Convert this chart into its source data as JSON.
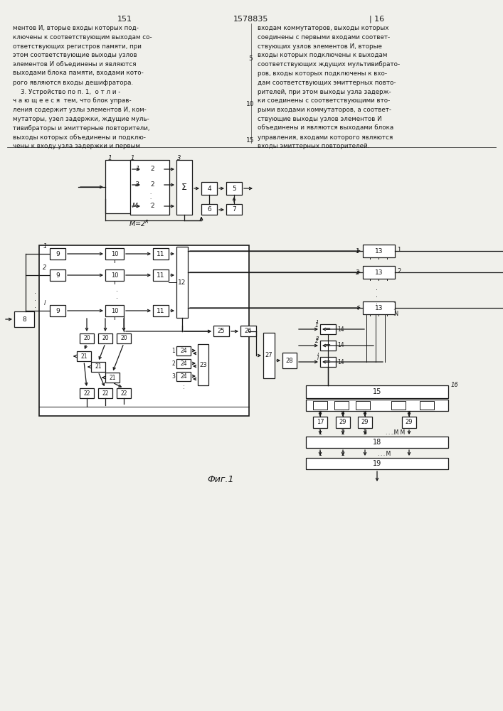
{
  "bg_color": "#f0f0eb",
  "line_color": "#1a1a1a",
  "text_color": "#1a1a1a",
  "left_col_lines": [
    "ментов И, вторые входы которых под-",
    "ключены к соответствующим выходам со-",
    "ответствующих регистров памяти, при",
    "этом соответствующие выходы узлов",
    "элементов И объединены и являются",
    "выходами блока памяти, входами кото-",
    "рого являются входы дешифратора.",
    "    3. Устройство по п. 1,  о т л и -",
    "ч а ю щ е е с я  тем, что блок управ-",
    "ления содержит узлы элементов И, ком-",
    "мутаторы, узел задержки, ждущие муль-",
    "тивибраторы и эмиттерные повторители,",
    "выходы которых объединены и подклю-",
    "чены к входу узла задержки и первым"
  ],
  "right_col_lines": [
    "входам коммутаторов, выходы которых",
    "соединены с первыми входами соответ-",
    "ствующих узлов элементов И, вторые",
    "входы которых подключены к выходам",
    "соответствующих ждущих мультивибрато-",
    "ров, входы которых подключены к вхо-",
    "дам соответствующих эмиттерных повто-",
    "рителей, при этом выходы узла задерж-",
    "ки соединены с соответствующими вто-",
    "рыми входами коммутаторов, а соответ-",
    "ствующие выходы узлов элементов И",
    "объединены и являются выходами блока",
    "управления, входами которого являются",
    "входы эмиттерных повторителей."
  ],
  "fig_label": "Фиг.1"
}
